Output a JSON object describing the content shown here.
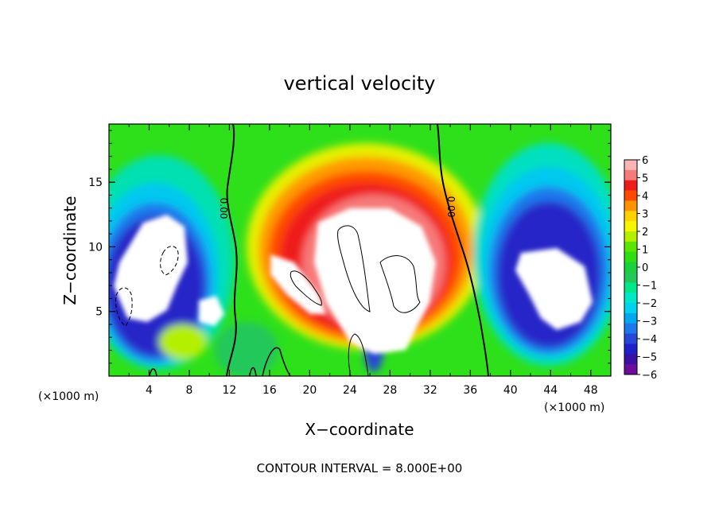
{
  "chart_data": {
    "type": "heatmap",
    "title": "vertical velocity",
    "xlabel": "X−coordinate",
    "ylabel": "Z−coordinate",
    "x_unit_left": "(×1000 m)",
    "x_unit_right": "(×1000 m)",
    "footer": "CONTOUR INTERVAL = 8.000E+00",
    "xlim": [
      0,
      50
    ],
    "ylim": [
      0,
      19.5
    ],
    "x_ticks": [
      "4",
      "8",
      "12",
      "16",
      "20",
      "24",
      "28",
      "32",
      "36",
      "40",
      "44",
      "48"
    ],
    "y_ticks": [
      "5",
      "10",
      "15"
    ],
    "contour_labels": [
      "0.00",
      "0.00"
    ],
    "colorbar": {
      "range": [
        -6,
        6
      ],
      "tick_labels": [
        "6",
        "5",
        "4",
        "3",
        "2",
        "1",
        "0",
        "−1",
        "−2",
        "−3",
        "−4",
        "−5",
        "−6"
      ],
      "colors": [
        "#f9b4b4",
        "#f77a7a",
        "#ef1c1c",
        "#ff4a00",
        "#ff9400",
        "#ffd200",
        "#f6f600",
        "#b4ef00",
        "#5ae600",
        "#2ede12",
        "#18d23c",
        "#22c85a",
        "#00e88a",
        "#00e8c8",
        "#00d2f0",
        "#00a8f0",
        "#1e78ec",
        "#2846d8",
        "#2020c8",
        "#3a10a6",
        "#6a0c9c"
      ]
    }
  }
}
